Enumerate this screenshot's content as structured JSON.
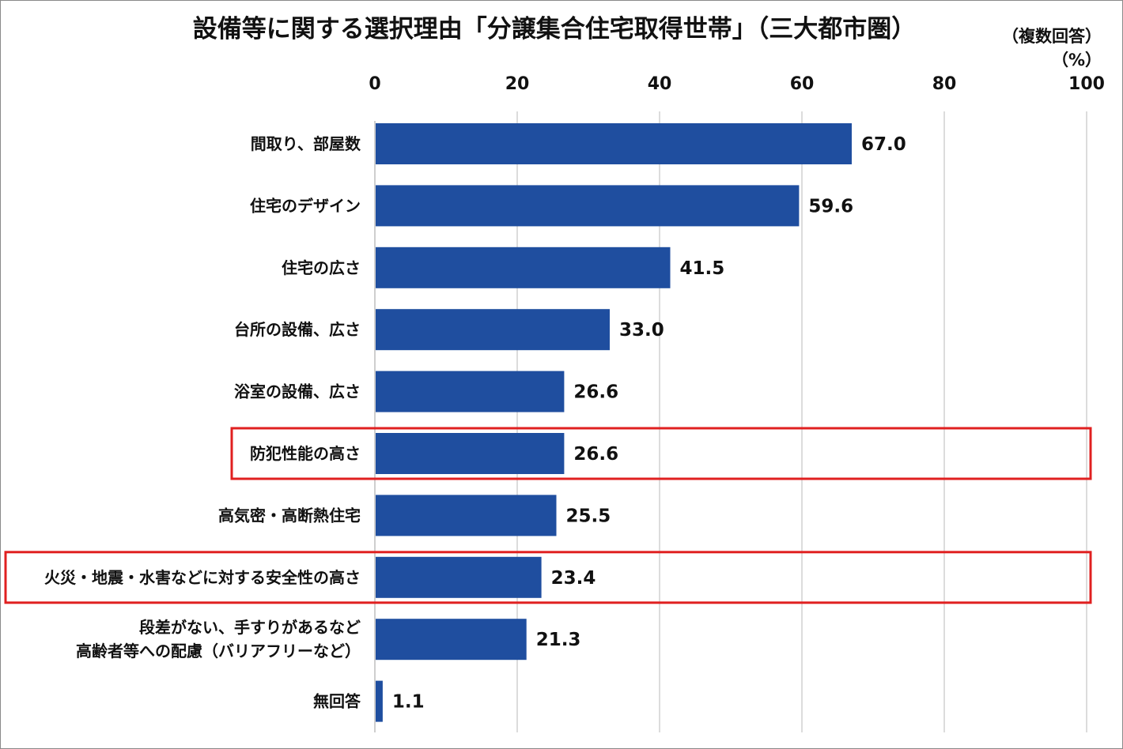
{
  "chart_data": {
    "type": "bar",
    "orientation": "horizontal",
    "title": "設備等に関する選択理由「分譲集合住宅取得世帯」（三大都市圏）",
    "note": "（複数回答）",
    "unit": "（%）",
    "xlim": [
      0,
      100
    ],
    "x_ticks": [
      "0",
      "20",
      "40",
      "60",
      "80",
      "100"
    ],
    "grid": true,
    "categories": [
      [
        "間取り、部屋数"
      ],
      [
        "住宅のデザイン"
      ],
      [
        "住宅の広さ"
      ],
      [
        "台所の設備、広さ"
      ],
      [
        "浴室の設備、広さ"
      ],
      [
        "防犯性能の高さ"
      ],
      [
        "高気密・高断熱住宅"
      ],
      [
        "火災・地震・水害などに対する安全性の高さ"
      ],
      [
        "段差がない、手すりがあるなど",
        "高齢者等への配慮（バリアフリーなど）"
      ],
      [
        "無回答"
      ]
    ],
    "values": [
      67.0,
      59.6,
      41.5,
      33.0,
      26.6,
      26.6,
      25.5,
      23.4,
      21.3,
      1.1
    ],
    "value_labels": [
      "67.0",
      "59.6",
      "41.5",
      "33.0",
      "26.6",
      "26.6",
      "25.5",
      "23.4",
      "21.3",
      "1.1"
    ],
    "highlighted": [
      "防犯性能の高さ",
      "火災・地震・水害などに対する安全性の高さ"
    ]
  },
  "colors": {
    "bar": "#1f4e9f",
    "grid": "#d0d0d0",
    "highlight_border": "#e02020",
    "text": "#111111"
  }
}
